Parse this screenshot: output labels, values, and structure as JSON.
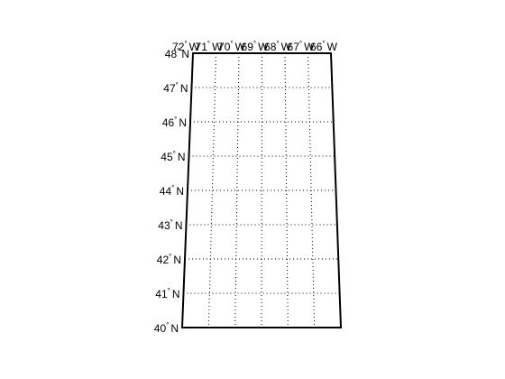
{
  "map": {
    "projection": "conic",
    "frame_color": "#000000",
    "grid_color": "#000000",
    "background_color": "#ffffff",
    "lat_range": [
      40,
      48
    ],
    "lon_range": [
      -72,
      -66
    ],
    "parallels": [
      {
        "value": 48,
        "deg": "48",
        "hem": "N"
      },
      {
        "value": 47,
        "deg": "47",
        "hem": "N"
      },
      {
        "value": 46,
        "deg": "46",
        "hem": "N"
      },
      {
        "value": 45,
        "deg": "45",
        "hem": "N"
      },
      {
        "value": 44,
        "deg": "44",
        "hem": "N"
      },
      {
        "value": 43,
        "deg": "43",
        "hem": "N"
      },
      {
        "value": 42,
        "deg": "42",
        "hem": "N"
      },
      {
        "value": 41,
        "deg": "41",
        "hem": "N"
      },
      {
        "value": 40,
        "deg": "40",
        "hem": "N"
      }
    ],
    "meridians": [
      {
        "value": -72,
        "deg": "72",
        "hem": "W"
      },
      {
        "value": -71,
        "deg": "71",
        "hem": "W"
      },
      {
        "value": -70,
        "deg": "70",
        "hem": "W"
      },
      {
        "value": -69,
        "deg": "69",
        "hem": "W"
      },
      {
        "value": -68,
        "deg": "68",
        "hem": "W"
      },
      {
        "value": -67,
        "deg": "67",
        "hem": "W"
      },
      {
        "value": -66,
        "deg": "66",
        "hem": "W"
      }
    ]
  }
}
